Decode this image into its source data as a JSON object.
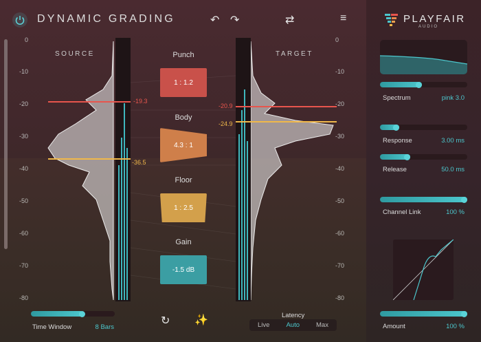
{
  "header": {
    "title": "DYNAMIC GRADING",
    "brand": "PLAYFAIR",
    "brand_sub": "AUDIO"
  },
  "icons": {
    "power": "power-icon",
    "undo": "undo-icon",
    "redo": "redo-icon",
    "swap": "swap-icon",
    "menu": "menu-icon",
    "reset": "refresh-icon",
    "auto": "magic-wand-icon"
  },
  "scale": [
    "0",
    "-10",
    "-20",
    "-30",
    "-40",
    "-50",
    "-60",
    "-70",
    "-80"
  ],
  "source": {
    "label": "SOURCE",
    "upper_threshold": "-19.3",
    "lower_threshold": "-36.5"
  },
  "target": {
    "label": "TARGET",
    "upper_threshold": "-20.9",
    "lower_threshold": "-24.9"
  },
  "bands": [
    {
      "label": "Punch",
      "value": "1 : 1.2",
      "color": "#d2584e"
    },
    {
      "label": "Body",
      "value": "4.3 : 1",
      "color": "#d9874e"
    },
    {
      "label": "Floor",
      "value": "1 : 2.5",
      "color": "#d9a84e"
    },
    {
      "label": "Gain",
      "value": "-1.5 dB",
      "color": "#3b9ea3"
    }
  ],
  "colors": {
    "accent": "#4cc7cd",
    "red": "#e8554d",
    "yellow": "#f0b84a"
  },
  "panel": {
    "spectrum": {
      "label": "Spectrum",
      "value": "pink 3.0",
      "level": 0.48
    },
    "response": {
      "label": "Response",
      "value": "3.00 ms",
      "level": 0.22
    },
    "release": {
      "label": "Release",
      "value": "50.0 ms",
      "level": 0.35
    },
    "channel_link": {
      "label": "Channel Link",
      "value": "100 %",
      "level": 1.0
    },
    "amount": {
      "label": "Amount",
      "value": "100 %",
      "level": 1.0
    }
  },
  "footer": {
    "time_window": {
      "label": "Time Window",
      "value": "8 Bars",
      "level": 0.6
    },
    "latency": {
      "label": "Latency",
      "options": [
        "Live",
        "Auto",
        "Max"
      ],
      "selected": "Auto"
    }
  }
}
